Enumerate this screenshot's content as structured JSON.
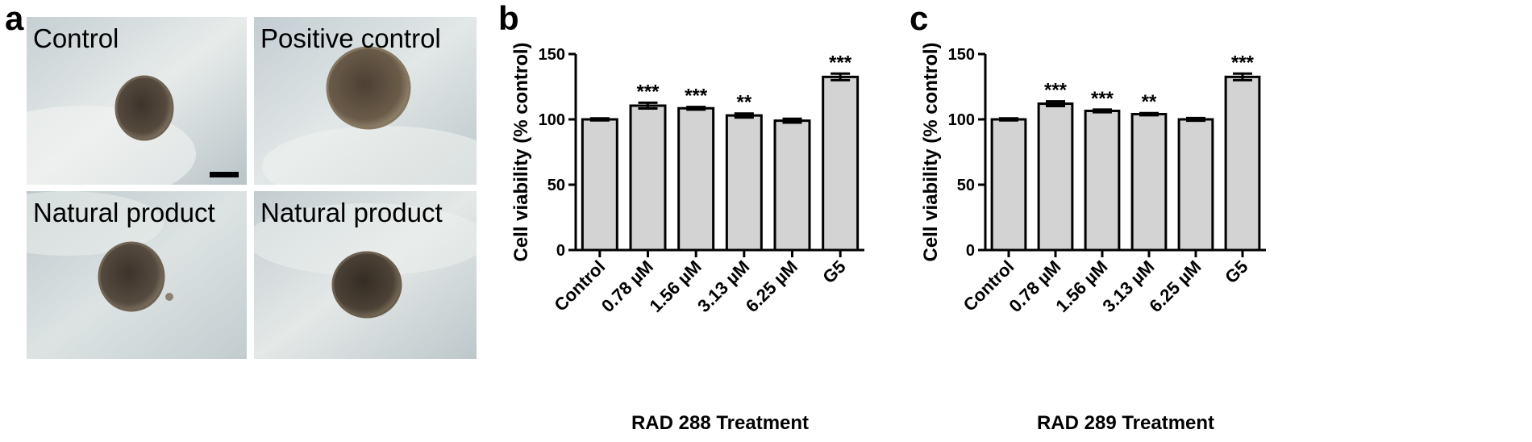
{
  "panels": {
    "a": {
      "letter": "a",
      "images": [
        {
          "label": "Control"
        },
        {
          "label": "Positive control"
        },
        {
          "label": "Natural product"
        },
        {
          "label": "Natural product"
        }
      ]
    },
    "b": {
      "letter": "b"
    },
    "c": {
      "letter": "c"
    }
  },
  "chart_data": [
    {
      "panel": "b",
      "type": "bar",
      "categories": [
        "Control",
        "0.78 µM",
        "1.56 µM",
        "3.13 µM",
        "6.25 µM",
        "G5"
      ],
      "values": [
        100,
        110.5,
        108.5,
        103,
        99,
        132.5
      ],
      "errors": [
        0.8,
        2.2,
        1.0,
        1.5,
        1.5,
        2.5
      ],
      "annotations": [
        "",
        "***",
        "***",
        "**",
        "",
        "***"
      ],
      "xlabel": "RAD 288 Treatment",
      "ylabel": "Cell viability (% control)",
      "ylim": [
        0,
        150
      ],
      "yticks": [
        0,
        50,
        100,
        150
      ],
      "bar_color": "#d3d3d3",
      "grid": false
    },
    {
      "panel": "c",
      "type": "bar",
      "categories": [
        "Control",
        "0.78 µM",
        "1.56 µM",
        "3.13 µM",
        "6.25 µM",
        "G5"
      ],
      "values": [
        100,
        112,
        106.5,
        104,
        100,
        132.5
      ],
      "errors": [
        0.8,
        1.8,
        1.0,
        0.8,
        1.0,
        2.5
      ],
      "annotations": [
        "",
        "***",
        "***",
        "**",
        "",
        "***"
      ],
      "xlabel": "RAD 289 Treatment",
      "ylabel": "Cell viability (% control)",
      "ylim": [
        0,
        150
      ],
      "yticks": [
        0,
        50,
        100,
        150
      ],
      "bar_color": "#d3d3d3",
      "grid": false
    }
  ]
}
